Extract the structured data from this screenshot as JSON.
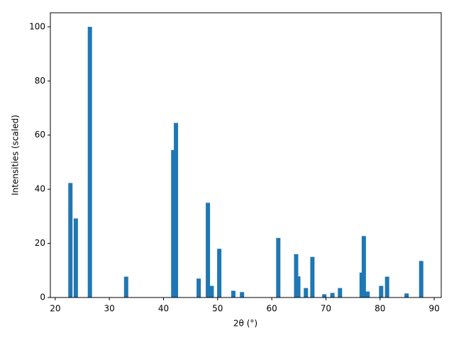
{
  "chart_data": {
    "type": "bar",
    "color": "#1f77b4",
    "x": [
      22.8,
      23.8,
      26.4,
      33.1,
      41.8,
      42.3,
      46.5,
      48.2,
      48.9,
      50.3,
      52.9,
      54.5,
      61.2,
      64.5,
      64.9,
      66.3,
      67.5,
      69.7,
      71.2,
      72.6,
      76.6,
      77.0,
      77.7,
      80.2,
      81.3,
      84.9,
      87.6
    ],
    "values": [
      42.3,
      29.2,
      100,
      7.7,
      54.5,
      64.5,
      7,
      35,
      4.3,
      18,
      2.5,
      2,
      22,
      16,
      7.8,
      3.5,
      15,
      1.2,
      1.7,
      3.5,
      9.2,
      22.7,
      2.2,
      4.3,
      7.7,
      1.5,
      13.5
    ],
    "xlabel": "2θ (°)",
    "ylabel": "Intensities (scaled)",
    "xlim": [
      19.1,
      91.3
    ],
    "xticks": [
      20,
      30,
      40,
      50,
      60,
      70,
      80,
      90
    ],
    "ylim": [
      0,
      105.2
    ],
    "yticks": [
      0,
      20,
      40,
      60,
      80,
      100
    ]
  }
}
